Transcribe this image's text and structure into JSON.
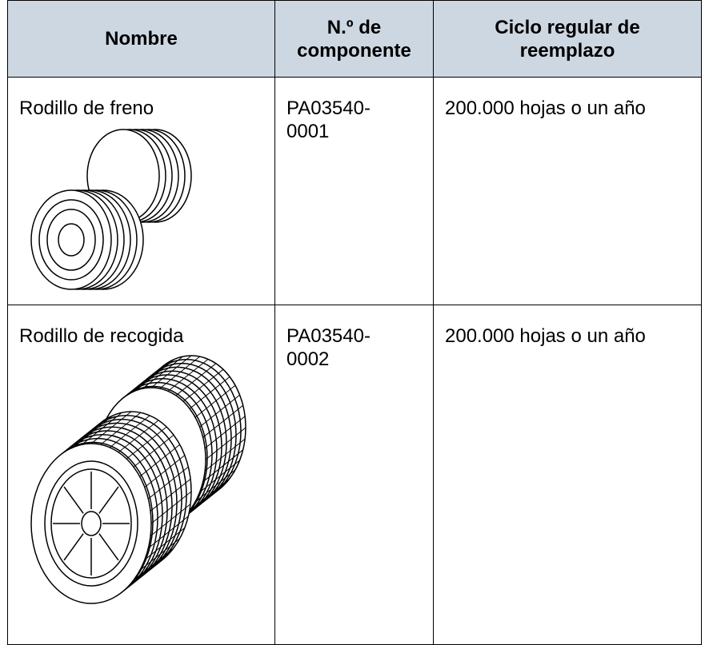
{
  "table": {
    "header": [
      "Nombre",
      "N.º de componente",
      "Ciclo regular de reemplazo"
    ],
    "rows": [
      [
        "Rodillo de freno",
        "PA03540-0001",
        "200.000 hojas o un año"
      ],
      [
        "Rodillo de recogida",
        "PA03540-0002",
        "200.000 hojas o un año"
      ]
    ]
  }
}
